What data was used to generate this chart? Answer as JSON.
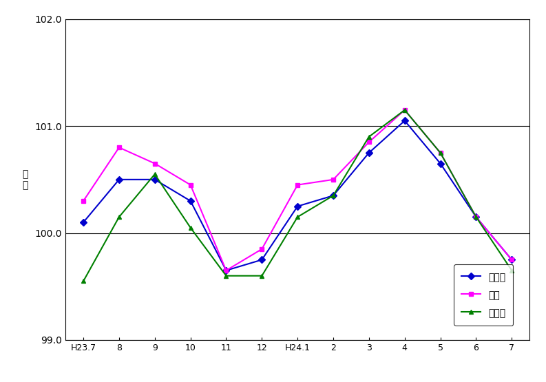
{
  "x_labels": [
    "H23.7",
    "8",
    "9",
    "10",
    "11",
    "12",
    "H24.1",
    "2",
    "3",
    "4",
    "5",
    "6",
    "7"
  ],
  "mie_ken": [
    100.1,
    100.5,
    100.5,
    100.3,
    99.65,
    99.75,
    100.25,
    100.35,
    100.75,
    101.05,
    100.65,
    100.15,
    99.75
  ],
  "tsu_shi": [
    100.3,
    100.8,
    100.65,
    100.45,
    99.65,
    99.85,
    100.45,
    100.5,
    100.85,
    101.15,
    100.75,
    100.15,
    99.75
  ],
  "matsusaka_shi": [
    99.55,
    100.15,
    100.55,
    100.05,
    99.6,
    99.6,
    100.15,
    100.35,
    100.9,
    101.15,
    100.75,
    100.15,
    99.65
  ],
  "ylim": [
    99.0,
    102.0
  ],
  "yticks": [
    99.0,
    100.0,
    101.0,
    102.0
  ],
  "ylabel": "指\n数",
  "mie_color": "#0000CD",
  "tsu_color": "#FF00FF",
  "matsusaka_color": "#008000",
  "legend_labels": [
    "三重県",
    "津市",
    "松阪市"
  ],
  "grid_color": "#000000",
  "background_color": "#ffffff",
  "line_width": 1.5,
  "figsize": [
    7.93,
    5.55
  ],
  "dpi": 100
}
